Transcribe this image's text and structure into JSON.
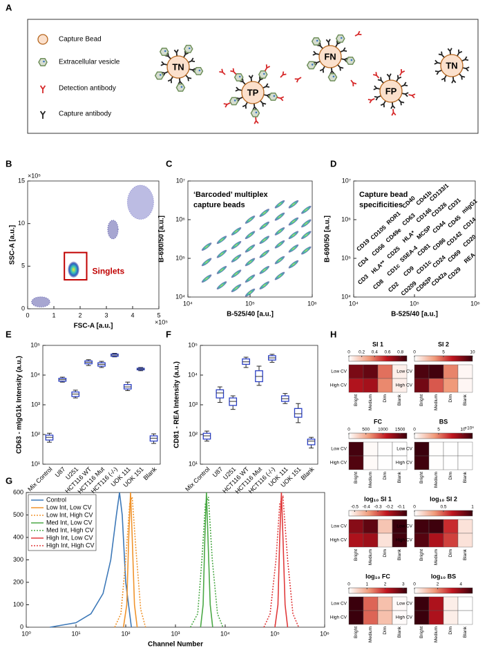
{
  "panel_labels": [
    "A",
    "B",
    "C",
    "D",
    "E",
    "F",
    "G",
    "H"
  ],
  "legend_A": {
    "items": [
      "Capture Bead",
      "Extracellular vesicle",
      "Detection antibody",
      "Capture antibody"
    ],
    "beads": [
      "TN",
      "TP",
      "FN",
      "FP",
      "TN"
    ]
  },
  "chart_data": [
    {
      "type": "scatter",
      "xlabel": "FSC-A [a.u.]",
      "ylabel": "SSC-A [a.u.]",
      "x_multiplier": "×10⁵",
      "y_multiplier": "×10⁵",
      "xlim": [
        0,
        5
      ],
      "ylim": [
        0,
        15
      ],
      "xticks": [
        0,
        1,
        2,
        3,
        4,
        5
      ],
      "yticks": [
        0,
        5,
        10,
        15
      ],
      "clusters": {
        "x": [
          0.5,
          1.75,
          3.25,
          4.3
        ],
        "y": [
          0.8,
          4.6,
          9.3,
          12.5
        ],
        "x_spread": [
          0.35,
          0.22,
          0.2,
          0.5
        ],
        "y_spread": [
          0.6,
          0.95,
          1.1,
          2
        ],
        "colors": [
          "#3b3a9a",
          "#36c2c8",
          "#3b3a9a",
          "#6a6ac0"
        ]
      },
      "gate": {
        "label": "Singlets",
        "color": "#c00000",
        "xlim": [
          1.4,
          2.25
        ],
        "ylim": [
          3.4,
          6.6
        ]
      }
    },
    {
      "type": "scatter",
      "xlabel": "B-525/40 [a.u.]",
      "ylabel": "B-690/50 [a.u.]",
      "annotation": [
        "‘Barcoded’ multiplex",
        "capture beads"
      ],
      "xscale": "log",
      "yscale": "log",
      "xlim": [
        10000,
        1000000
      ],
      "ylim": [
        10000,
        10000000
      ],
      "xticks": [
        {
          "value": 10000,
          "label": "10⁴"
        },
        {
          "value": 100000,
          "label": "10⁵"
        },
        {
          "value": 1000000,
          "label": "10⁶"
        }
      ],
      "yticks": [
        {
          "value": 10000,
          "label": "10⁴"
        },
        {
          "value": 100000,
          "label": "10⁵"
        },
        {
          "value": 1000000,
          "label": "10⁶"
        },
        {
          "value": 10000000,
          "label": "10⁷"
        }
      ],
      "x": [
        20000,
        20000,
        20000,
        35000,
        35000,
        35000,
        35000,
        60000,
        60000,
        60000,
        60000,
        60000,
        100000,
        100000,
        100000,
        100000,
        100000,
        100000,
        170000,
        170000,
        170000,
        170000,
        170000,
        170000,
        300000,
        300000,
        300000,
        300000,
        300000,
        300000,
        500000,
        500000,
        500000,
        500000,
        500000,
        800000,
        800000,
        800000,
        800000
      ],
      "y": [
        30000,
        80000,
        200000,
        20000,
        50000,
        130000,
        300000,
        17000,
        40000,
        100000,
        220000,
        500000,
        13000,
        30000,
        80000,
        180000,
        400000,
        1000000,
        20000,
        50000,
        130000,
        300000,
        700000,
        1500000,
        35000,
        90000,
        230000,
        500000,
        1200000,
        2500000,
        70000,
        180000,
        400000,
        900000,
        2500000,
        160000,
        400000,
        800000,
        1800000
      ]
    },
    {
      "type": "text-grid",
      "xlabel": "B-525/40 [a.u.]",
      "ylabel": "B-690/50 [a.u.]",
      "annotation": [
        "Capture bead",
        "specificities"
      ],
      "xscale": "log",
      "yscale": "log",
      "xlim": [
        10000,
        1000000
      ],
      "ylim": [
        10000,
        10000000
      ],
      "xticks": [
        {
          "value": 10000,
          "label": "10⁴"
        },
        {
          "value": 100000,
          "label": "10⁵"
        },
        {
          "value": 1000000,
          "label": "10⁶"
        }
      ],
      "yticks": [
        {
          "value": 10000,
          "label": "10⁴"
        },
        {
          "value": 100000,
          "label": "10⁵"
        },
        {
          "value": 1000000,
          "label": "10⁶"
        },
        {
          "value": 10000000,
          "label": "10⁷"
        }
      ],
      "columns": [
        [
          "CD3",
          "CD4",
          "CD19"
        ],
        [
          "CD8",
          "HLA**",
          "CD56",
          "CD105"
        ],
        [
          "CD2",
          "CD1c",
          "CD25",
          "CD49e",
          "ROR1"
        ],
        [
          "CD209",
          "CD9",
          "SSEA-4",
          "HLA*",
          "CD63",
          "CD40"
        ],
        [
          "CD62P",
          "CD11c",
          "CD81",
          "MCSP",
          "CD146",
          "CD41b"
        ],
        [
          "CD42a",
          "CD24",
          "CD86",
          "CD44",
          "CD326",
          "CD133/1"
        ],
        [
          "CD29",
          "CD69",
          "CD142",
          "CD45",
          "CD31"
        ],
        [
          "REA",
          "CD20",
          "CD14",
          "mIgG1"
        ]
      ]
    },
    {
      "type": "box",
      "ylabel": "CD63 - mIgG1k Intensity (a.u.)",
      "yscale": "log",
      "ylim": [
        10,
        100000
      ],
      "yticks": [
        {
          "value": 10,
          "label": "10¹"
        },
        {
          "value": 100,
          "label": "10²"
        },
        {
          "value": 1000,
          "label": "10³"
        },
        {
          "value": 10000,
          "label": "10⁴"
        },
        {
          "value": 100000,
          "label": "10⁵"
        }
      ],
      "categories": [
        "Mix Control",
        "U87",
        "U251",
        "HCT116 WT",
        "HCT116 Mut",
        "HCT116 (-/-)",
        "UOK 111",
        "UOK 151",
        "Blank"
      ],
      "median": [
        80,
        7000,
        2300,
        27000,
        23000,
        47000,
        4000,
        16000,
        75
      ],
      "q1": [
        65,
        6200,
        1900,
        24000,
        20000,
        43000,
        3400,
        15000,
        60
      ],
      "q3": [
        95,
        7800,
        2700,
        30000,
        26000,
        51000,
        4800,
        17000,
        90
      ],
      "whislo": [
        55,
        5800,
        1700,
        21000,
        18000,
        41000,
        3000,
        14000,
        50
      ],
      "whishi": [
        110,
        8500,
        3100,
        33000,
        29000,
        54000,
        5800,
        18000,
        105
      ],
      "color": "#2a3fc4"
    },
    {
      "type": "box",
      "ylabel": "CD81 - REA Intensity (a.u.)",
      "yscale": "log",
      "ylim": [
        10,
        100000
      ],
      "yticks": [
        {
          "value": 10,
          "label": "10¹"
        },
        {
          "value": 100,
          "label": "10²"
        },
        {
          "value": 1000,
          "label": "10³"
        },
        {
          "value": 10000,
          "label": "10⁴"
        },
        {
          "value": 100000,
          "label": "10⁵"
        }
      ],
      "categories": [
        "Mix Control",
        "U87",
        "U251",
        "HCT116 WT",
        "HCT116 Mut",
        "HCT116 (-/-)",
        "UOK 111",
        "UOK 151",
        "Blank"
      ],
      "median": [
        90,
        2500,
        1300,
        28000,
        9000,
        38000,
        1600,
        500,
        60
      ],
      "q1": [
        70,
        1700,
        950,
        23000,
        6000,
        32000,
        1300,
        380,
        45
      ],
      "q3": [
        110,
        3200,
        1700,
        35000,
        14000,
        45000,
        2000,
        750,
        70
      ],
      "whislo": [
        60,
        1200,
        700,
        18000,
        4500,
        27000,
        1100,
        250,
        35
      ],
      "whishi": [
        130,
        4000,
        2000,
        40000,
        20000,
        50000,
        2400,
        1100,
        80
      ],
      "color": "#2a3fc4"
    },
    {
      "type": "line",
      "xlabel": "Channel Number",
      "xscale": "log",
      "xlim": [
        1,
        1000000
      ],
      "ylim": [
        0,
        600
      ],
      "xticks": [
        {
          "value": 1,
          "label": "10⁰"
        },
        {
          "value": 10,
          "label": "10¹"
        },
        {
          "value": 100,
          "label": "10²"
        },
        {
          "value": 1000,
          "label": "10³"
        },
        {
          "value": 10000,
          "label": "10⁴"
        },
        {
          "value": 100000,
          "label": "10⁵"
        },
        {
          "value": 1000000,
          "label": "10⁶"
        }
      ],
      "yticks": [
        0,
        100,
        200,
        300,
        400,
        500,
        600
      ],
      "series": [
        {
          "name": "Control",
          "color": "#3c78b8",
          "dash": "solid",
          "x": [
            3,
            10,
            20,
            35,
            50,
            65,
            75,
            85,
            100,
            130
          ],
          "values": [
            0,
            20,
            60,
            150,
            300,
            500,
            600,
            500,
            200,
            0
          ]
        },
        {
          "name": "Low Int, Low CV",
          "color": "#f0932b",
          "dash": "solid",
          "x": [
            90,
            105,
            115,
            125,
            135,
            150,
            170
          ],
          "values": [
            0,
            100,
            400,
            600,
            400,
            100,
            0
          ]
        },
        {
          "name": "Low Int, High CV",
          "color": "#f0932b",
          "dash": "dotted",
          "x": [
            60,
            80,
            100,
            120,
            135,
            160,
            200,
            250
          ],
          "values": [
            0,
            60,
            300,
            550,
            580,
            350,
            80,
            0
          ]
        },
        {
          "name": "Med Int, Low CV",
          "color": "#4aa845",
          "dash": "solid",
          "x": [
            3200,
            3600,
            3900,
            4200,
            4500,
            5000,
            5600
          ],
          "values": [
            0,
            100,
            400,
            600,
            400,
            100,
            0
          ]
        },
        {
          "name": "Med Int, High CV",
          "color": "#4aa845",
          "dash": "dotted",
          "x": [
            2000,
            2800,
            3400,
            4000,
            4600,
            5500,
            7000,
            9000
          ],
          "values": [
            0,
            60,
            300,
            550,
            580,
            300,
            60,
            0
          ]
        },
        {
          "name": "High Int, Low CV",
          "color": "#e0393a",
          "dash": "solid",
          "x": [
            100000,
            115000,
            125000,
            135000,
            145000,
            160000,
            180000
          ],
          "values": [
            0,
            100,
            400,
            600,
            400,
            100,
            0
          ]
        },
        {
          "name": "High Int, High CV",
          "color": "#e0393a",
          "dash": "dotted",
          "x": [
            60000,
            80000,
            105000,
            125000,
            145000,
            180000,
            230000,
            300000
          ],
          "values": [
            0,
            60,
            300,
            550,
            580,
            300,
            60,
            0
          ]
        }
      ]
    },
    {
      "type": "heatmap",
      "title": "SI 1",
      "rows": [
        "Low CV",
        "High CV"
      ],
      "columns": [
        "Bright",
        "Medium",
        "Dim",
        "Blank"
      ],
      "zlim": [
        0,
        0.9
      ],
      "zticks": [
        0,
        0.2,
        0.4,
        0.6,
        0.8
      ],
      "values": [
        [
          0.75,
          0.8,
          0.4,
          0.05
        ],
        [
          0.62,
          0.65,
          0.35,
          0.05
        ]
      ]
    },
    {
      "type": "heatmap",
      "title": "SI 2",
      "rows": [
        "Low CV",
        "High CV"
      ],
      "columns": [
        "Bright",
        "Medium",
        "Dim",
        "Blank"
      ],
      "zlim": [
        0,
        10
      ],
      "zticks": [
        0,
        5,
        10
      ],
      "values": [
        [
          9.5,
          9.8,
          4,
          0.3
        ],
        [
          8.5,
          5,
          3.5,
          0.3
        ]
      ]
    },
    {
      "type": "heatmap",
      "title": "FC",
      "rows": [
        "Low CV",
        "High CV"
      ],
      "columns": [
        "Bright",
        "Medium",
        "Dim",
        "Blank"
      ],
      "zlim": [
        0,
        1700
      ],
      "zticks": [
        0,
        500,
        1000,
        1500
      ],
      "values": [
        [
          1650,
          30,
          5,
          0
        ],
        [
          1600,
          30,
          5,
          0
        ]
      ]
    },
    {
      "type": "heatmap",
      "title": "BS",
      "z_multiplier": "×10⁶",
      "rows": [
        "Low CV",
        "High CV"
      ],
      "columns": [
        "Bright",
        "Medium",
        "Dim",
        "Blank"
      ],
      "zlim": [
        0,
        12
      ],
      "zticks": [
        0,
        5,
        10
      ],
      "values": [
        [
          12,
          0.05,
          0,
          0
        ],
        [
          11.8,
          0.05,
          0,
          0
        ]
      ]
    },
    {
      "type": "heatmap",
      "title": "log₁₀ SI 1",
      "rows": [
        "Low CV",
        "High CV"
      ],
      "columns": [
        "Bright",
        "Medium",
        "Dim",
        "Blank"
      ],
      "zlim": [
        -0.55,
        -0.05
      ],
      "zticks": [
        -0.5,
        -0.4,
        -0.3,
        -0.2,
        -0.1
      ],
      "values": [
        [
          -0.15,
          -0.1,
          -0.45,
          -0.05
        ],
        [
          -0.2,
          -0.18,
          -0.5,
          -0.06
        ]
      ]
    },
    {
      "type": "heatmap",
      "title": "log₁₀ SI 2",
      "rows": [
        "Low CV",
        "High CV"
      ],
      "columns": [
        "Bright",
        "Medium",
        "Dim",
        "Blank"
      ],
      "zlim": [
        0,
        1
      ],
      "zticks": [
        0,
        0.5,
        1
      ],
      "values": [
        [
          0.98,
          0.99,
          0.6,
          0.1
        ],
        [
          0.93,
          0.7,
          0.55,
          0.1
        ]
      ]
    },
    {
      "type": "heatmap",
      "title": "log₁₀ FC",
      "rows": [
        "Low CV",
        "High CV"
      ],
      "columns": [
        "Bright",
        "Medium",
        "Dim",
        "Blank"
      ],
      "zlim": [
        0,
        3.2
      ],
      "zticks": [
        0,
        1,
        2,
        3
      ],
      "values": [
        [
          3.2,
          1.5,
          0.7,
          0.05
        ],
        [
          3.2,
          1.5,
          0.7,
          0.05
        ]
      ]
    },
    {
      "type": "heatmap",
      "title": "log₁₀ BS",
      "rows": [
        "Low CV",
        "High CV"
      ],
      "columns": [
        "Bright",
        "Medium",
        "Dim",
        "Blank"
      ],
      "zlim": [
        0,
        5
      ],
      "zticks": [
        0,
        2,
        4
      ],
      "values": [
        [
          5,
          3.5,
          0.3,
          0
        ],
        [
          5,
          3.5,
          0.3,
          0
        ]
      ]
    }
  ]
}
